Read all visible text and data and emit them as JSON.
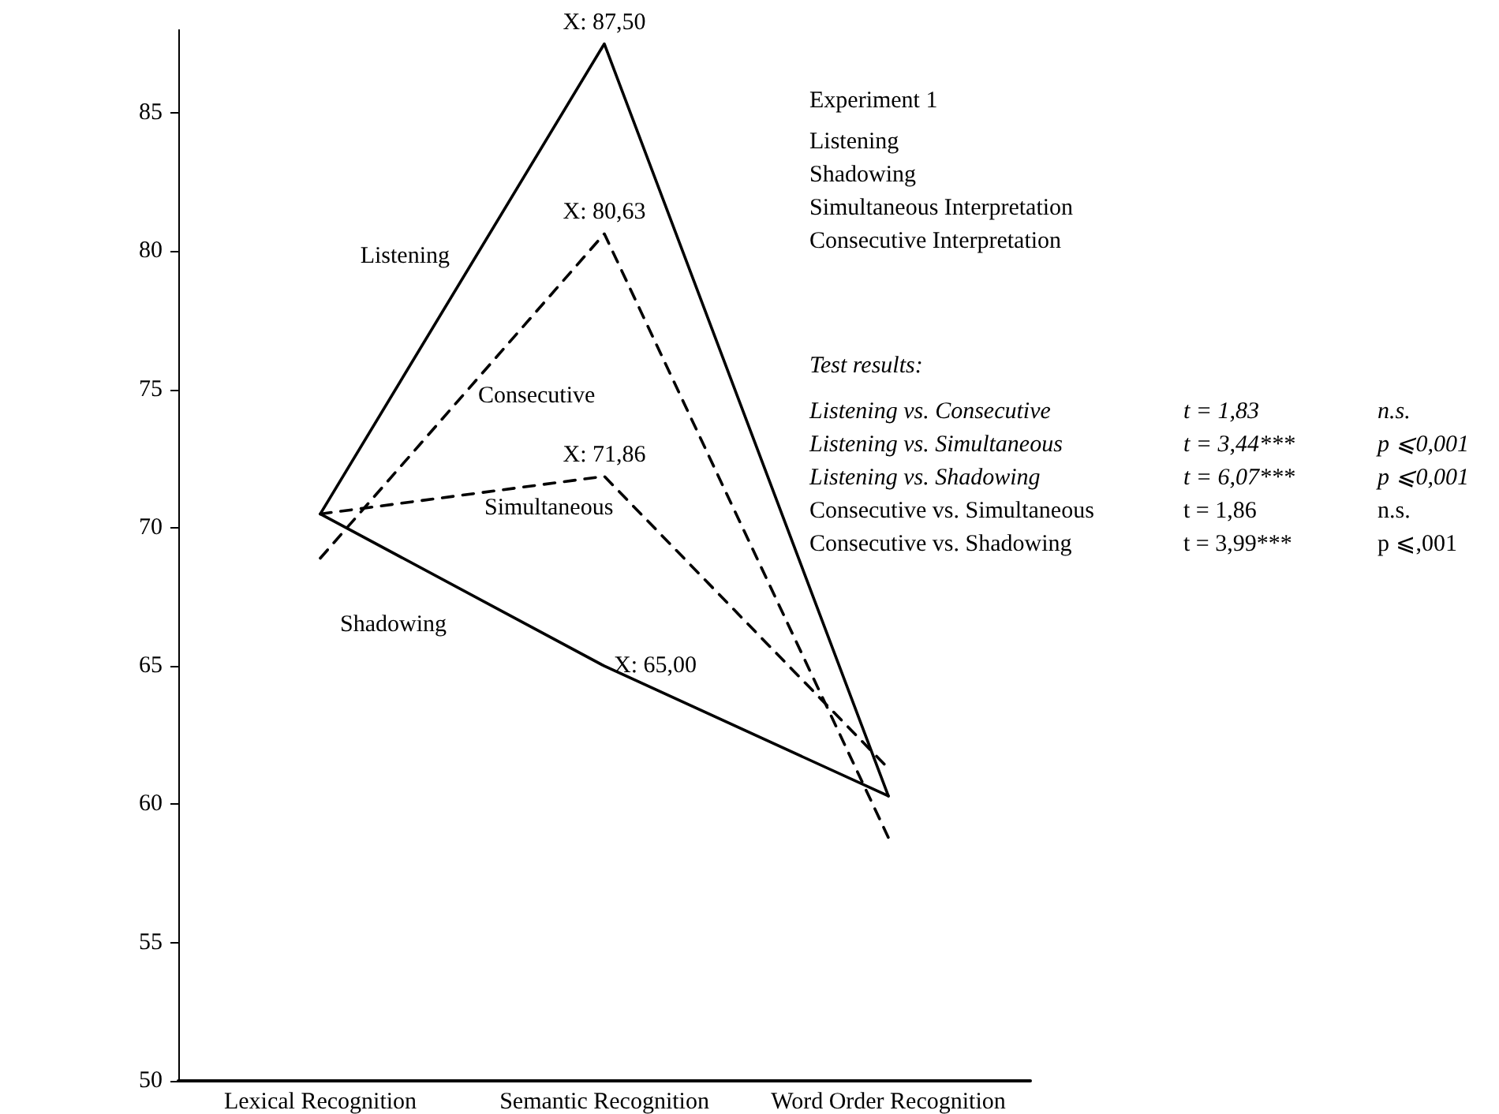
{
  "chart_data": {
    "type": "line",
    "categories": [
      "Lexical Recognition",
      "Semantic Recognition",
      "Word Order Recognition"
    ],
    "series": [
      {
        "name": "Listening",
        "color": "#000000",
        "line_style": "solid",
        "values": [
          70.5,
          87.5,
          60.3
        ],
        "value_labels": [
          null,
          "X: 87,50",
          null
        ]
      },
      {
        "name": "Consecutive",
        "color": "#000000",
        "line_style": "dashed",
        "values": [
          68.9,
          80.63,
          58.8
        ],
        "value_labels": [
          null,
          "X: 80,63",
          null
        ]
      },
      {
        "name": "Simultaneous",
        "color": "#000000",
        "line_style": "dashed",
        "values": [
          70.5,
          71.86,
          61.3
        ],
        "value_labels": [
          null,
          "X: 71,86",
          null
        ]
      },
      {
        "name": "Shadowing",
        "color": "#000000",
        "line_style": "solid",
        "values": [
          70.5,
          65.0,
          60.3
        ],
        "value_labels": [
          null,
          "X: 65,00",
          null
        ]
      }
    ],
    "ylim": [
      50,
      88
    ],
    "yticks": [
      50,
      55,
      60,
      65,
      70,
      75,
      80,
      85
    ],
    "grid": false,
    "legend": false,
    "marker": "none",
    "annotations": [
      "Experiment 1",
      "Listening",
      "Shadowing",
      "Simultaneous Interpretation",
      "Consecutive Interpretation",
      "Test results:",
      "Listening vs. Consecutive",
      "t = 1,83",
      "n.s.",
      "Listening vs. Simultaneous",
      "t = 3,44***",
      "p ⩽0,001",
      "Listening vs. Shadowing",
      "t = 6,07***",
      "p ⩽0,001",
      "Consecutive vs. Simultaneous",
      "t = 1,86",
      "n.s.",
      "Consecutive vs. Shadowing",
      "t = 3,99***",
      "p ⩽,001"
    ]
  }
}
